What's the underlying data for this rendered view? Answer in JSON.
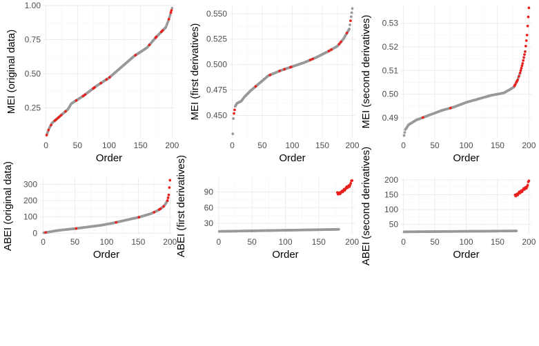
{
  "colors": {
    "grey_points": "#999999",
    "red_points": "#e8211f",
    "grid_major": "#ebebeb",
    "grid_minor": "#f5f5f5"
  },
  "chart_data": [
    {
      "type": "scatter",
      "xlabel": "Order",
      "ylabel": "MEI (original data)",
      "x_ticks": [
        "0",
        "50",
        "100",
        "150",
        "200"
      ],
      "y_ticks": [
        "0.25",
        "0.50",
        "0.75",
        "1.00"
      ],
      "xlim": [
        -4,
        204
      ],
      "ylim": [
        0.03,
        1.0
      ],
      "n": 200,
      "curve": {
        "x": [
          1,
          5,
          10,
          20,
          35,
          40,
          60,
          80,
          100,
          120,
          140,
          160,
          175,
          190,
          195,
          200
        ],
        "y": [
          0.05,
          0.1,
          0.14,
          0.18,
          0.24,
          0.28,
          0.34,
          0.41,
          0.47,
          0.55,
          0.63,
          0.69,
          0.77,
          0.84,
          0.9,
          0.98
        ]
      },
      "highlight_ranks": [
        1,
        4,
        8,
        14,
        16,
        19,
        21,
        24,
        31,
        48,
        59,
        62,
        75,
        77,
        87,
        96,
        101,
        142,
        164,
        174,
        175,
        183,
        185,
        195,
        198,
        199
      ]
    },
    {
      "type": "scatter",
      "xlabel": "Order",
      "ylabel": "MEI (first derivatives)",
      "x_ticks": [
        "0",
        "50",
        "100",
        "150",
        "200"
      ],
      "y_ticks": [
        "0.450",
        "0.475",
        "0.500",
        "0.525",
        "0.550"
      ],
      "xlim": [
        -4,
        204
      ],
      "ylim": [
        0.428,
        0.558
      ],
      "n": 200,
      "curve": {
        "x": [
          1,
          2,
          3,
          5,
          8,
          15,
          20,
          30,
          40,
          60,
          80,
          100,
          120,
          140,
          160,
          175,
          185,
          195,
          200
        ],
        "y": [
          0.432,
          0.447,
          0.452,
          0.459,
          0.462,
          0.464,
          0.468,
          0.474,
          0.479,
          0.489,
          0.494,
          0.498,
          0.502,
          0.507,
          0.513,
          0.518,
          0.525,
          0.535,
          0.555
        ]
      },
      "highlight_ranks": [
        3,
        4,
        39,
        63,
        79,
        87,
        97,
        98,
        130,
        134,
        161,
        165,
        178,
        181,
        191,
        197
      ]
    },
    {
      "type": "scatter",
      "xlabel": "Order",
      "ylabel": "MEI (second derivatives)",
      "x_ticks": [
        "0",
        "50",
        "100",
        "150",
        "200"
      ],
      "y_ticks": [
        "0.49",
        "0.50",
        "0.51",
        "0.52",
        "0.53"
      ],
      "xlim": [
        -4,
        204
      ],
      "ylim": [
        0.4815,
        0.5375
      ],
      "n": 200,
      "curve": {
        "x": [
          1,
          3,
          8,
          20,
          40,
          60,
          80,
          100,
          120,
          140,
          160,
          170,
          176,
          182,
          186,
          190,
          194,
          197,
          200
        ],
        "y": [
          0.4825,
          0.485,
          0.487,
          0.489,
          0.491,
          0.493,
          0.4945,
          0.4965,
          0.498,
          0.4995,
          0.5005,
          0.502,
          0.503,
          0.506,
          0.509,
          0.513,
          0.518,
          0.525,
          0.5365
        ]
      },
      "highlight_ranks": [
        31,
        75,
        177,
        178,
        180,
        181,
        182,
        184,
        186,
        187,
        188,
        189,
        190,
        191,
        192,
        193,
        194,
        195,
        196,
        197,
        198,
        199,
        200
      ]
    },
    {
      "type": "scatter",
      "xlabel": "Order",
      "ylabel": "ABEI (original data)",
      "x_ticks": [
        "0",
        "50",
        "100",
        "150",
        "200"
      ],
      "y_ticks": [
        "0",
        "100",
        "200",
        "300"
      ],
      "xlim": [
        -5,
        204
      ],
      "ylim": [
        -7,
        340
      ],
      "n": 200,
      "curve": {
        "x": [
          1,
          10,
          20,
          30,
          50,
          70,
          90,
          110,
          130,
          150,
          170,
          180,
          185,
          190,
          193,
          196,
          198,
          200
        ],
        "y": [
          3,
          8,
          15,
          20,
          28,
          38,
          48,
          62,
          80,
          97,
          120,
          138,
          150,
          165,
          180,
          200,
          235,
          325
        ]
      },
      "highlight_ranks": [
        4,
        52,
        115,
        151,
        175,
        183,
        185,
        190,
        196,
        197,
        198,
        199,
        200
      ]
    },
    {
      "type": "scatter",
      "xlabel": "Order",
      "ylabel": "ABEI (first derivatives)",
      "x_ticks": [
        "0",
        "50",
        "100",
        "150",
        "200"
      ],
      "y_ticks": [
        "30",
        "60",
        "90"
      ],
      "xlim": [
        -4,
        204
      ],
      "ylim": [
        9,
        117
      ],
      "n": 200,
      "grey": {
        "x": [
          1,
          180
        ],
        "y": [
          14.6,
          18.5
        ]
      },
      "red": {
        "x": [
          180,
          185,
          188,
          191,
          194,
          196,
          198,
          200
        ],
        "y": [
          87,
          90,
          94,
          97,
          100,
          102,
          106,
          113
        ]
      }
    },
    {
      "type": "scatter",
      "xlabel": "Order",
      "ylabel": "ABEI (second derivatives)",
      "x_ticks": [
        "0",
        "50",
        "100",
        "150",
        "200"
      ],
      "y_ticks": [
        "50",
        "100",
        "150",
        "200"
      ],
      "xlim": [
        -4,
        204
      ],
      "ylim": [
        16,
        207
      ],
      "n": 200,
      "grey": {
        "x": [
          1,
          180
        ],
        "y": [
          24.5,
          27.5
        ]
      },
      "red": {
        "x": [
          178,
          182,
          186,
          190,
          193,
          196,
          198,
          200
        ],
        "y": [
          146,
          152,
          158,
          165,
          170,
          175,
          181,
          199
        ]
      }
    }
  ]
}
